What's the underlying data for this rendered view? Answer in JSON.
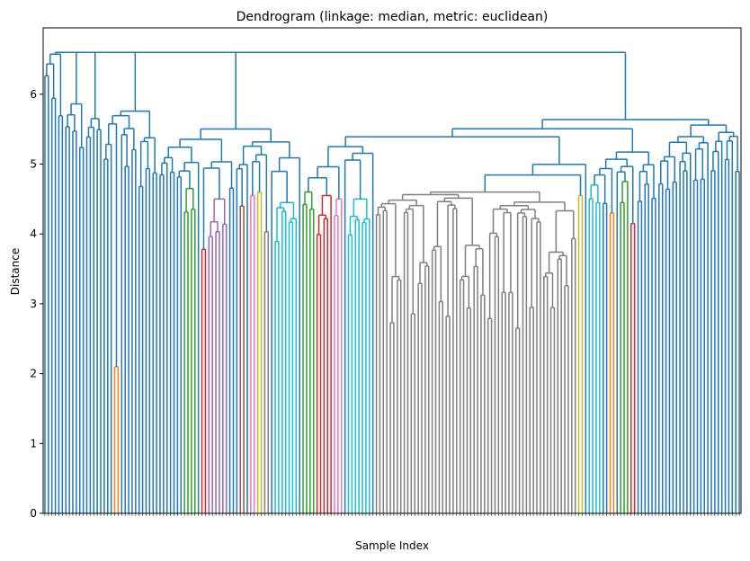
{
  "chart_data": {
    "type": "dendrogram",
    "title": "Dendrogram (linkage: median, metric: euclidean)",
    "xlabel": "Sample Index",
    "ylabel": "Distance",
    "ylim": [
      0,
      6.95
    ],
    "yticks": [
      0,
      1,
      2,
      3,
      4,
      5,
      6
    ],
    "grid": false,
    "legend": "none",
    "n_leaves": 200,
    "colors": {
      "main": "#1f77b4",
      "orange": "#ff7f0e",
      "green": "#2ca02c",
      "red": "#d62728",
      "purple": "#9467bd",
      "brown": "#8c564b",
      "pink": "#e377c2",
      "gray": "#7f7f7f",
      "olive": "#bcbd22",
      "cyan": "#17becf"
    },
    "root_distance": 6.6,
    "highlighted_clusters": [
      {
        "color": "orange",
        "merge_distance": 2.1
      },
      {
        "color": "green",
        "merge_distance": 4.65
      },
      {
        "color": "red",
        "merge_distance": 3.78
      },
      {
        "color": "red",
        "merge_distance": 4.55
      },
      {
        "color": "purple",
        "merge_distance": 4.5
      },
      {
        "color": "brown",
        "merge_distance": 4.4
      },
      {
        "color": "pink",
        "merge_distance": 4.55
      },
      {
        "color": "olive",
        "merge_distance": 4.6
      },
      {
        "color": "gray",
        "merge_distance": 4.03
      },
      {
        "color": "cyan",
        "merge_distance": 4.45
      },
      {
        "color": "gray",
        "merge_distance": 4.6
      },
      {
        "color": "olive",
        "merge_distance": 4.55
      },
      {
        "color": "orange",
        "merge_distance": 4.3
      },
      {
        "color": "green",
        "merge_distance": 4.75
      },
      {
        "color": "red",
        "merge_distance": 4.15
      }
    ]
  }
}
